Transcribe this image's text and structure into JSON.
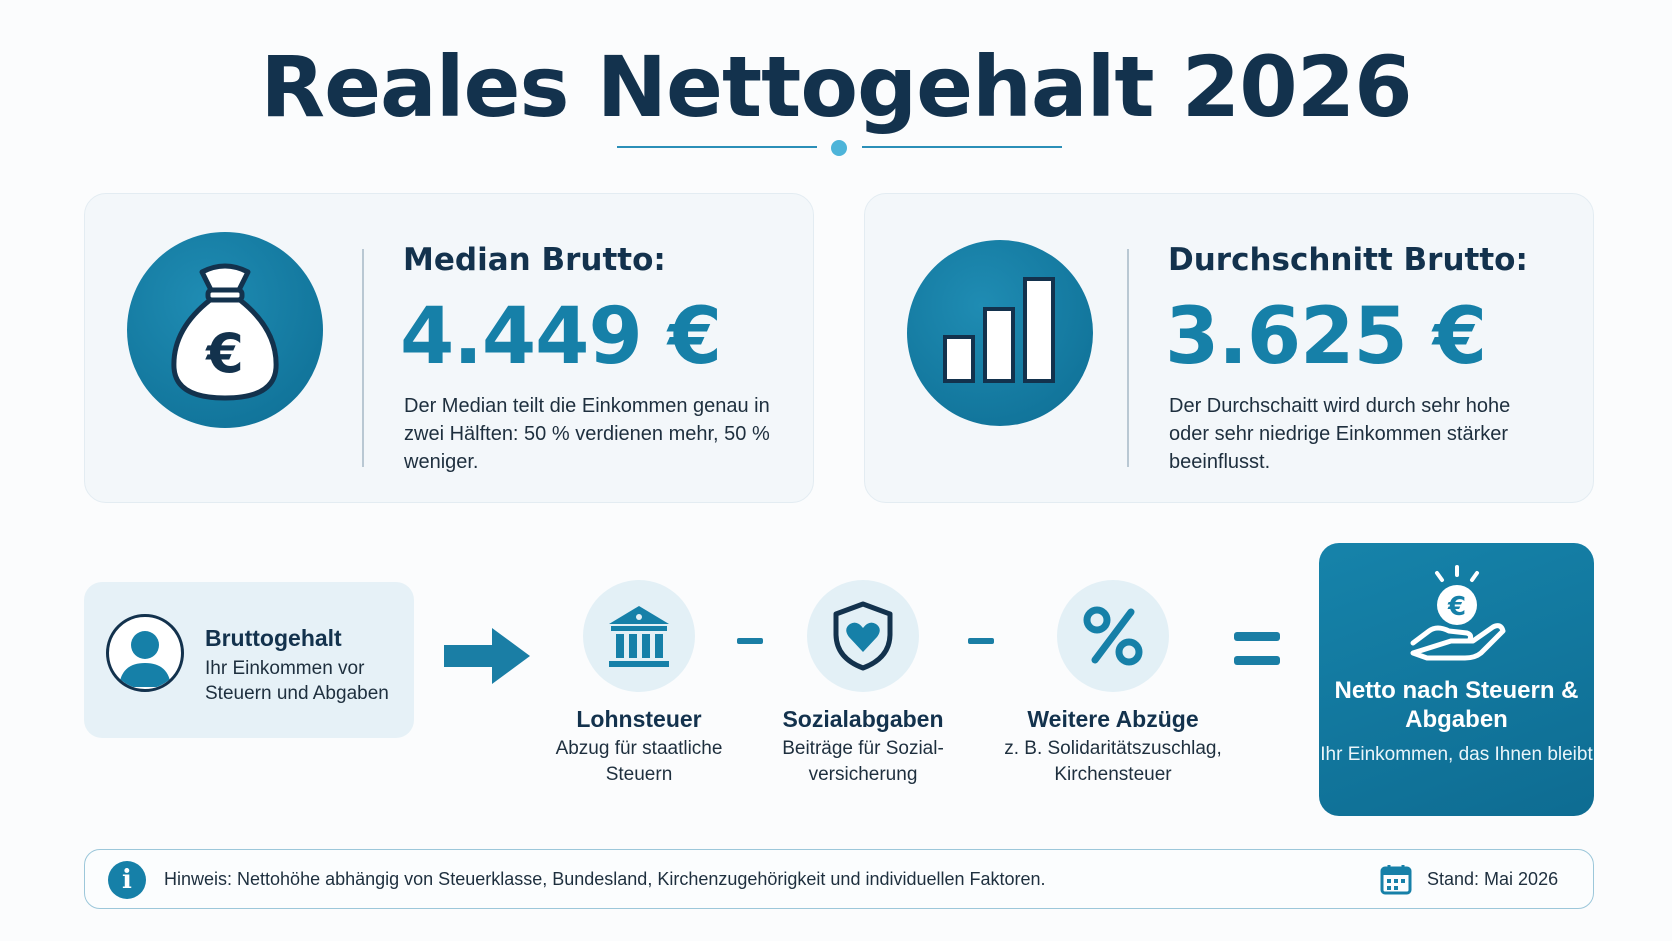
{
  "title": "Reales Nettogehalt 2026",
  "cards": [
    {
      "icon": "money-bag-euro-icon",
      "label": "Median Brutto:",
      "value": "4.449 €",
      "description": "Der Median teilt die Einkommen genau in zwei Hälften: 50 % verdienen mehr, 50 % weniger."
    },
    {
      "icon": "bar-chart-icon",
      "label": "Durchschnitt Brutto:",
      "value": "3.625 €",
      "description": "Der Durchschaitt wird durch sehr hohe oder sehr niedrige Einkommen stärker beeinflusst."
    }
  ],
  "flow": {
    "brutto": {
      "icon": "user-icon",
      "title": "Bruttogehalt",
      "description": "Ihr Einkommen vor Steuern und Abgaben"
    },
    "steps": [
      {
        "icon": "bank-building-icon",
        "title": "Lohnsteuer",
        "description": "Abzug für staatliche Steuern"
      },
      {
        "icon": "shield-heart-icon",
        "title": "Sozialabgaben",
        "description": "Beiträge für Sozial-versicherung"
      },
      {
        "icon": "percent-icon",
        "title": "Weitere Abzüge",
        "description": "z. B. Solidaritätszuschlag, Kirchensteuer"
      }
    ],
    "result": {
      "icon": "hand-euro-coin-icon",
      "title": "Netto nach Steuern & Abgaben",
      "description": "Ihr Einkommen, das Ihnen bleibt"
    }
  },
  "hint": {
    "text": "Hinweis: Nettohöhe abhängig von Steuerklasse, Bundesland, Kirchenzugehörigkeit und individuellen Faktoren.",
    "date": "Stand: Mai 2026"
  },
  "colors": {
    "primary": "#1680a8",
    "dark": "#13324d",
    "light_bg": "#e6f1f7"
  }
}
